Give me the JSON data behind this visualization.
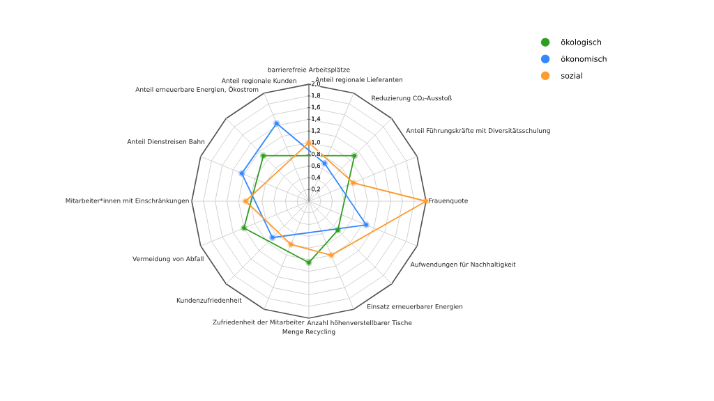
{
  "chart_data": {
    "type": "radar",
    "categories": [
      "barrierefreie Arbeitsplätze",
      "Anteil regionale Lieferanten",
      "Reduzierung CO₂-Ausstoß",
      "Anteil Führungskräfte mit Diversitätsschulung",
      "Frauenquote",
      "Aufwendungen für Nachhaltigkeit",
      "Einsatz erneuerbarer Energien",
      "Anzahl höhenverstellbarer Tische",
      "Menge Recycling",
      "Zufriedenheit der Mitarbeiter",
      "Kundenzufriedenheit",
      "Vermeidung von Abfall",
      "Mitarbeiter*innen mit Einschränkungen",
      "Anteil Dienstreisen Bahn",
      "Anteil erneuerbare Energien, Ökostrom",
      "Anteil regionale Kunden"
    ],
    "series": [
      {
        "name": "ökologisch",
        "color": "#2e9e1f",
        "values": [
          null,
          null,
          1.1,
          null,
          null,
          null,
          0.7,
          null,
          1.05,
          null,
          null,
          1.2,
          null,
          null,
          1.1,
          null
        ]
      },
      {
        "name": "ökonomisch",
        "color": "#3388ff",
        "values": [
          null,
          0.7,
          null,
          null,
          null,
          1.06,
          null,
          null,
          null,
          null,
          0.88,
          null,
          null,
          1.24,
          null,
          1.44
        ]
      },
      {
        "name": "sozial",
        "color": "#ff9a2e",
        "values": [
          1.0,
          null,
          null,
          0.82,
          2.0,
          null,
          null,
          1.0,
          null,
          0.8,
          null,
          null,
          1.08,
          null,
          null,
          null
        ]
      }
    ],
    "ylim": [
      0,
      2.0
    ],
    "yticks": [
      {
        "value": 0.2,
        "label": "0,2"
      },
      {
        "value": 0.4,
        "label": "0,4"
      },
      {
        "value": 0.6,
        "label": "0,6"
      },
      {
        "value": 0.8,
        "label": "0,8"
      },
      {
        "value": 1.0,
        "label": "1,0"
      },
      {
        "value": 1.2,
        "label": "1,2"
      },
      {
        "value": 1.4,
        "label": "1,4"
      },
      {
        "value": 1.6,
        "label": "1,6"
      },
      {
        "value": 1.8,
        "label": "1,8"
      },
      {
        "value": 2.0,
        "label": "2,0"
      }
    ],
    "grid": true,
    "legend": "top right",
    "marker": "circle",
    "line_style": "solid"
  }
}
